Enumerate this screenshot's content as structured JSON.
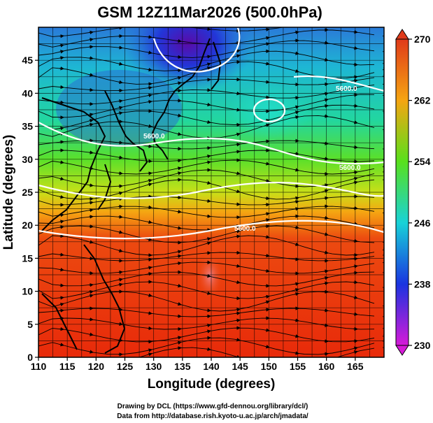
{
  "title": "GSM 12Z11Mar2026 (500.0hPa)",
  "x_axis": {
    "label": "Longitude (degrees)",
    "ticks": [
      "110",
      "115",
      "120",
      "125",
      "130",
      "135",
      "140",
      "145",
      "150",
      "155",
      "160",
      "165"
    ]
  },
  "y_axis": {
    "label": "Latitude (degrees)",
    "ticks": [
      "0",
      "5",
      "10",
      "15",
      "20",
      "25",
      "30",
      "35",
      "40",
      "45"
    ]
  },
  "colorbar": {
    "ticks": [
      "230",
      "238",
      "246",
      "254",
      "262",
      "270"
    ]
  },
  "contour_labels": [
    "5600.0",
    "5600.0",
    "5600.0",
    "5600.0"
  ],
  "credits": [
    "Drawing by DCL (https://www.gfd-dennou.org/library/dcl/)",
    "Data from http://database.rish.kyoto-u.ac.jp/arch/jmadata/"
  ],
  "colors": {
    "cold": "#5a0aa8",
    "cool": "#1e3ae0",
    "mild": "#16d6d6",
    "green": "#36d81c",
    "warm": "#f0a010",
    "hot": "#e82a0a",
    "coast": "#000000",
    "contour": "#ffffff"
  }
}
